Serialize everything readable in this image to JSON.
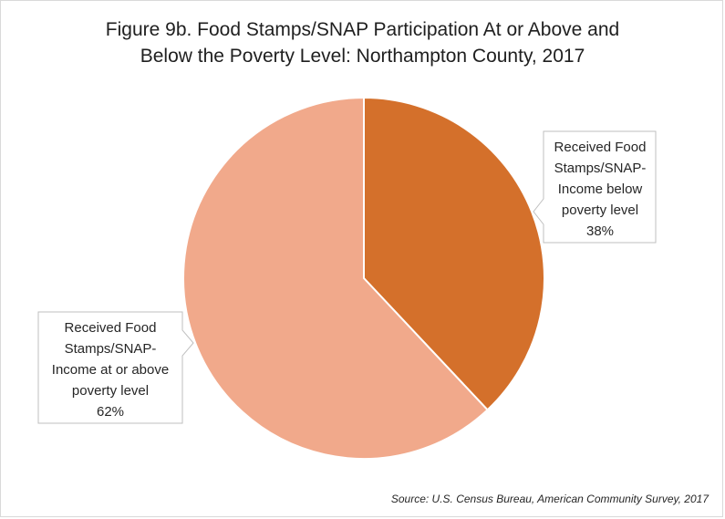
{
  "chart_data": {
    "type": "pie",
    "title_lines": [
      "Figure 9b. Food Stamps/SNAP Participation At or Above and",
      "Below the Poverty Level: Northampton County, 2017"
    ],
    "slices": [
      {
        "label_lines": [
          "Received Food",
          "Stamps/SNAP-",
          "Income below",
          "poverty level"
        ],
        "value": 38,
        "value_label": "38%",
        "color": "#d4702b"
      },
      {
        "label_lines": [
          "Received Food",
          "Stamps/SNAP-",
          "Income at or above",
          "poverty level"
        ],
        "value": 62,
        "value_label": "62%",
        "color": "#f1a98b"
      }
    ],
    "source": "Source: U.S. Census Bureau, American Community Survey, 2017"
  }
}
